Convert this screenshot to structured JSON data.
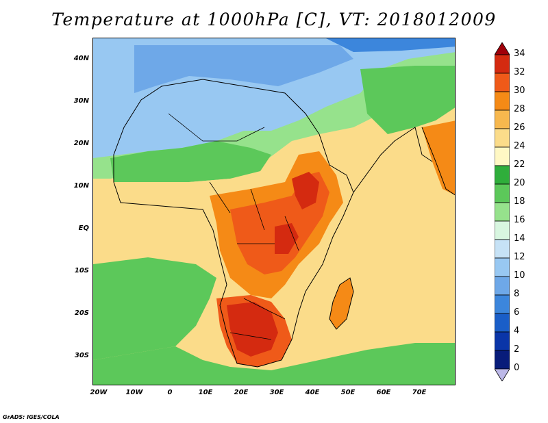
{
  "title": "Temperature at 1000hPa [C], VT: 2018012009",
  "credit": "GrADS: IGES/COLA",
  "lat_labels": [
    "40N",
    "30N",
    "20N",
    "10N",
    "EQ",
    "10S",
    "20S",
    "30S"
  ],
  "lon_labels": [
    "20W",
    "10W",
    "0",
    "10E",
    "20E",
    "30E",
    "40E",
    "50E",
    "60E",
    "70E"
  ],
  "colorbar": {
    "labels": [
      "34",
      "32",
      "30",
      "28",
      "26",
      "24",
      "22",
      "20",
      "18",
      "16",
      "14",
      "12",
      "10",
      "8",
      "6",
      "4",
      "2",
      "0"
    ],
    "colors": [
      "#a0000a",
      "#d42a10",
      "#ef5a19",
      "#f58a16",
      "#f7b84e",
      "#fbdc8a",
      "#fff8c4",
      "#2fae3b",
      "#5cc85a",
      "#96e28c",
      "#d8f6e0",
      "#c6e2f6",
      "#98c8f2",
      "#6ea8e8",
      "#3c86dc",
      "#1a5ec8",
      "#0a35a8",
      "#081c7a",
      "#bcb8e8"
    ]
  },
  "map_colors": {
    "ocean_cold": "#5cc85a",
    "ocean_warm": "#fbdc8a",
    "sahara_cool": "#98c8f2",
    "land_hot": "#ef5a19",
    "land_hottest": "#d42a10",
    "mediterranean": "#6ea8e8"
  }
}
